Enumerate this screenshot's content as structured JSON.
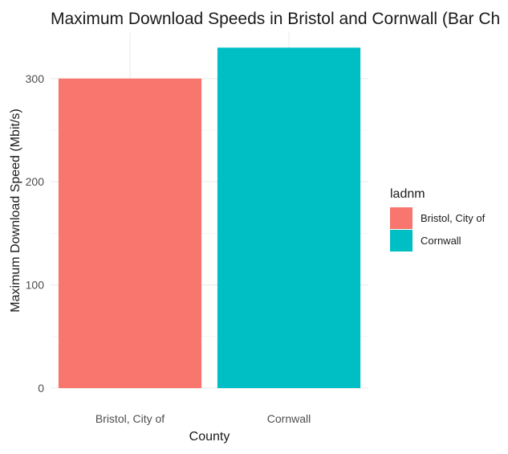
{
  "chart_data": {
    "type": "bar",
    "title": "Maximum Download Speeds in Bristol and Cornwall (Bar Ch",
    "xlabel": "County",
    "ylabel": "Maximum Download Speed (Mbit/s)",
    "categories": [
      "Bristol, City of",
      "Cornwall"
    ],
    "values": [
      300,
      330
    ],
    "colors": [
      "#F8766D",
      "#00BFC4"
    ],
    "ylim": [
      0,
      345
    ],
    "yticks": [
      0,
      100,
      200,
      300
    ],
    "grid": true,
    "legend": {
      "title": "ladnm",
      "position": "right",
      "entries": [
        {
          "label": "Bristol, City of",
          "color": "#F8766D"
        },
        {
          "label": "Cornwall",
          "color": "#00BFC4"
        }
      ]
    }
  }
}
